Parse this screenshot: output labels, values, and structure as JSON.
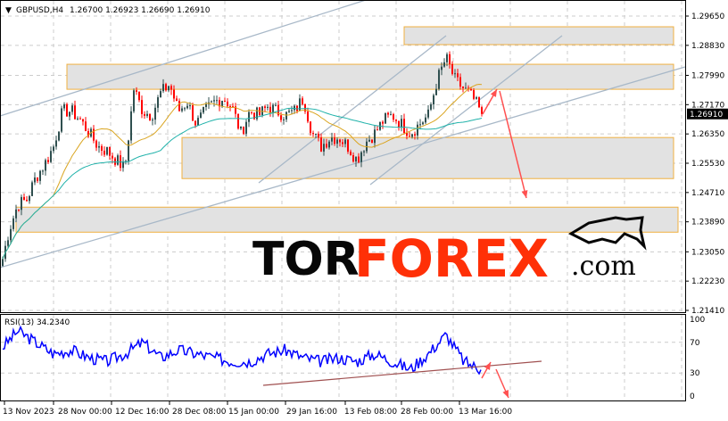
{
  "header": {
    "symbol_label": "GBPUSD,H4",
    "ohlc": "1.26700 1.26923 1.26690 1.26910"
  },
  "logo": {
    "text_main": "TOR",
    "text_accent": "FOREX",
    "text_suffix": ".com"
  },
  "colors": {
    "bull": "#2f4f4f",
    "bear": "#ff0000",
    "ma_fast": "#daa520",
    "ma_slow": "#20b2aa",
    "zone_fill": "#e2e2e2",
    "zone_border": "#f0b040",
    "channel": "#a8b8c8",
    "arrow": "#ff5050",
    "rsi": "#0000ff",
    "rsi_trend": "#a05050",
    "logo_accent": "#ff2a00"
  },
  "chart_data": [
    {
      "type": "candlestick",
      "title": "GBPUSD,H4",
      "ylim": [
        1.2141,
        1.2965
      ],
      "y_ticks": [
        "1.29650",
        "1.28830",
        "1.27990",
        "1.27170",
        "1.26350",
        "1.25530",
        "1.24710",
        "1.23890",
        "1.23050",
        "1.22230",
        "1.21410"
      ],
      "current_price": "1.26910",
      "x_ticks": [
        "13 Nov 2023",
        "28 Nov 00:00",
        "12 Dec 16:00",
        "28 Dec 08:00",
        "15 Jan 00:00",
        "29 Jan 16:00",
        "13 Feb 08:00",
        "28 Feb 00:00",
        "13 Mar 16:00"
      ],
      "approx_close_path": [
        1.2252,
        1.2364,
        1.2438,
        1.2451,
        1.2513,
        1.255,
        1.26,
        1.2699,
        1.2699,
        1.2674,
        1.2637,
        1.26,
        1.2587,
        1.2563,
        1.2538,
        1.2761,
        1.2699,
        1.2687,
        1.2749,
        1.2774,
        1.2699,
        1.2724,
        1.2662,
        1.2699,
        1.2724,
        1.2736,
        1.2712,
        1.2637,
        1.2699,
        1.2687,
        1.2712,
        1.2699,
        1.2687,
        1.2699,
        1.2736,
        1.2637,
        1.26,
        1.2625,
        1.2625,
        1.26,
        1.2563,
        1.2612,
        1.2637,
        1.2674,
        1.2687,
        1.2662,
        1.2637,
        1.2662,
        1.2687,
        1.2786,
        1.2848,
        1.2786,
        1.2761,
        1.2736,
        1.2691
      ],
      "zones": [
        [
          1.2885,
          1.2935
        ],
        [
          1.276,
          1.283
        ],
        [
          1.251,
          1.2625
        ],
        [
          1.236,
          1.243
        ]
      ],
      "moving_averages": 2,
      "grid": true
    },
    {
      "type": "line",
      "title": "RSI(13) 34.2340",
      "ylim": [
        0,
        100
      ],
      "y_ticks": [
        "100",
        "70",
        "30",
        "0"
      ],
      "approx_values": [
        60,
        85,
        70,
        55,
        60,
        50,
        45,
        55,
        70,
        50,
        60,
        55,
        50,
        45,
        45,
        55,
        60,
        50,
        45,
        50,
        45,
        55,
        45,
        35,
        55,
        80,
        45,
        34
      ]
    }
  ]
}
